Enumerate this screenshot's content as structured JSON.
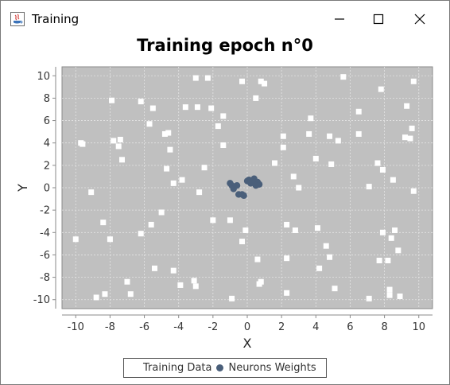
{
  "window": {
    "title": "Training",
    "app_icon": "java-app-icon",
    "buttons": [
      "minimize-icon",
      "maximize-icon",
      "close-icon"
    ]
  },
  "chart_data": {
    "type": "scatter",
    "title": "Training epoch n°0",
    "xlabel": "X",
    "ylabel": "Y",
    "xlim": [
      -10.8,
      10.8
    ],
    "ylim": [
      -10.8,
      10.8
    ],
    "xticks": [
      -10,
      -8,
      -6,
      -4,
      -2,
      0,
      2,
      4,
      6,
      8,
      10
    ],
    "yticks": [
      -10,
      -8,
      -6,
      -4,
      -2,
      0,
      2,
      4,
      6,
      8,
      10
    ],
    "grid": true,
    "plot_background": "#c0c0c0",
    "legend_position": "bottom",
    "series": [
      {
        "name": "Training Data",
        "marker": "square",
        "color": "#ffffff",
        "points": [
          [
            -9.7,
            4.0
          ],
          [
            -7.9,
            7.8
          ],
          [
            -6.2,
            7.7
          ],
          [
            -5.7,
            5.7
          ],
          [
            -5.5,
            7.1
          ],
          [
            -4.8,
            4.8
          ],
          [
            -4.6,
            4.9
          ],
          [
            -4.5,
            3.4
          ],
          [
            -3.6,
            7.2
          ],
          [
            -2.9,
            7.2
          ],
          [
            -3.0,
            9.8
          ],
          [
            -2.3,
            9.8
          ],
          [
            -2.1,
            7.1
          ],
          [
            -1.7,
            5.5
          ],
          [
            -1.4,
            6.4
          ],
          [
            -1.4,
            3.8
          ],
          [
            -3.8,
            0.7
          ],
          [
            -2.5,
            1.8
          ],
          [
            -2.8,
            -0.4
          ],
          [
            -0.3,
            9.5
          ],
          [
            0.5,
            8.0
          ],
          [
            0.8,
            9.5
          ],
          [
            1.0,
            9.3
          ],
          [
            -7.8,
            4.2
          ],
          [
            -7.5,
            3.7
          ],
          [
            -7.4,
            4.3
          ],
          [
            -7.3,
            2.5
          ],
          [
            -4.7,
            1.7
          ],
          [
            -4.3,
            0.4
          ],
          [
            -9.1,
            -0.4
          ],
          [
            -9.6,
            3.9
          ],
          [
            -2.0,
            -2.9
          ],
          [
            -1.0,
            -2.9
          ],
          [
            -0.3,
            -4.8
          ],
          [
            -0.1,
            -3.8
          ],
          [
            0.6,
            -6.4
          ],
          [
            0.7,
            -8.6
          ],
          [
            0.8,
            -8.4
          ],
          [
            -0.9,
            -9.9
          ],
          [
            -3.0,
            -8.8
          ],
          [
            -3.1,
            -8.3
          ],
          [
            -3.9,
            -8.7
          ],
          [
            -4.3,
            -7.4
          ],
          [
            -5.4,
            -7.2
          ],
          [
            -5.0,
            -2.2
          ],
          [
            -5.6,
            -3.3
          ],
          [
            -6.2,
            -4.1
          ],
          [
            -7.0,
            -8.4
          ],
          [
            -6.8,
            -9.5
          ],
          [
            -8.3,
            -9.5
          ],
          [
            -8.8,
            -9.8
          ],
          [
            -8.4,
            -3.1
          ],
          [
            -8.0,
            -4.6
          ],
          [
            -10.0,
            -4.6
          ],
          [
            1.6,
            2.2
          ],
          [
            2.1,
            4.6
          ],
          [
            2.1,
            3.6
          ],
          [
            2.7,
            1.0
          ],
          [
            3.0,
            0.0
          ],
          [
            2.3,
            -3.3
          ],
          [
            2.8,
            -3.8
          ],
          [
            2.3,
            -6.3
          ],
          [
            2.3,
            -9.4
          ],
          [
            3.6,
            4.8
          ],
          [
            3.7,
            6.2
          ],
          [
            4.0,
            2.6
          ],
          [
            4.8,
            4.6
          ],
          [
            4.9,
            2.1
          ],
          [
            5.3,
            4.2
          ],
          [
            5.6,
            9.9
          ],
          [
            6.5,
            6.8
          ],
          [
            6.5,
            4.8
          ],
          [
            7.1,
            0.1
          ],
          [
            7.6,
            2.2
          ],
          [
            7.8,
            8.8
          ],
          [
            7.9,
            1.6
          ],
          [
            8.5,
            0.7
          ],
          [
            9.2,
            4.5
          ],
          [
            9.3,
            7.3
          ],
          [
            9.5,
            4.4
          ],
          [
            9.6,
            5.3
          ],
          [
            9.7,
            9.5
          ],
          [
            9.7,
            -0.3
          ],
          [
            4.1,
            -3.6
          ],
          [
            4.6,
            -5.2
          ],
          [
            4.8,
            -6.2
          ],
          [
            4.2,
            -7.2
          ],
          [
            5.1,
            -9.0
          ],
          [
            7.1,
            -9.9
          ],
          [
            7.7,
            -6.5
          ],
          [
            7.9,
            -4.0
          ],
          [
            8.2,
            -6.5
          ],
          [
            8.3,
            -9.1
          ],
          [
            8.3,
            -9.6
          ],
          [
            8.4,
            -4.5
          ],
          [
            8.6,
            -3.8
          ],
          [
            8.8,
            -5.6
          ],
          [
            8.9,
            -9.7
          ]
        ]
      },
      {
        "name": "Neurons Weights",
        "marker": "circle",
        "color": "#4a5f7a",
        "points": [
          [
            -1.0,
            0.4
          ],
          [
            -0.9,
            0.2
          ],
          [
            -0.8,
            -0.1
          ],
          [
            -0.6,
            0.2
          ],
          [
            -0.5,
            -0.6
          ],
          [
            -0.3,
            -0.6
          ],
          [
            -0.2,
            -0.7
          ],
          [
            0.0,
            0.6
          ],
          [
            0.1,
            0.7
          ],
          [
            0.2,
            0.4
          ],
          [
            0.4,
            0.8
          ],
          [
            0.5,
            0.3
          ],
          [
            0.6,
            0.5
          ],
          [
            0.7,
            0.3
          ],
          [
            0.3,
            0.6
          ],
          [
            0.5,
            0.2
          ]
        ]
      }
    ]
  }
}
